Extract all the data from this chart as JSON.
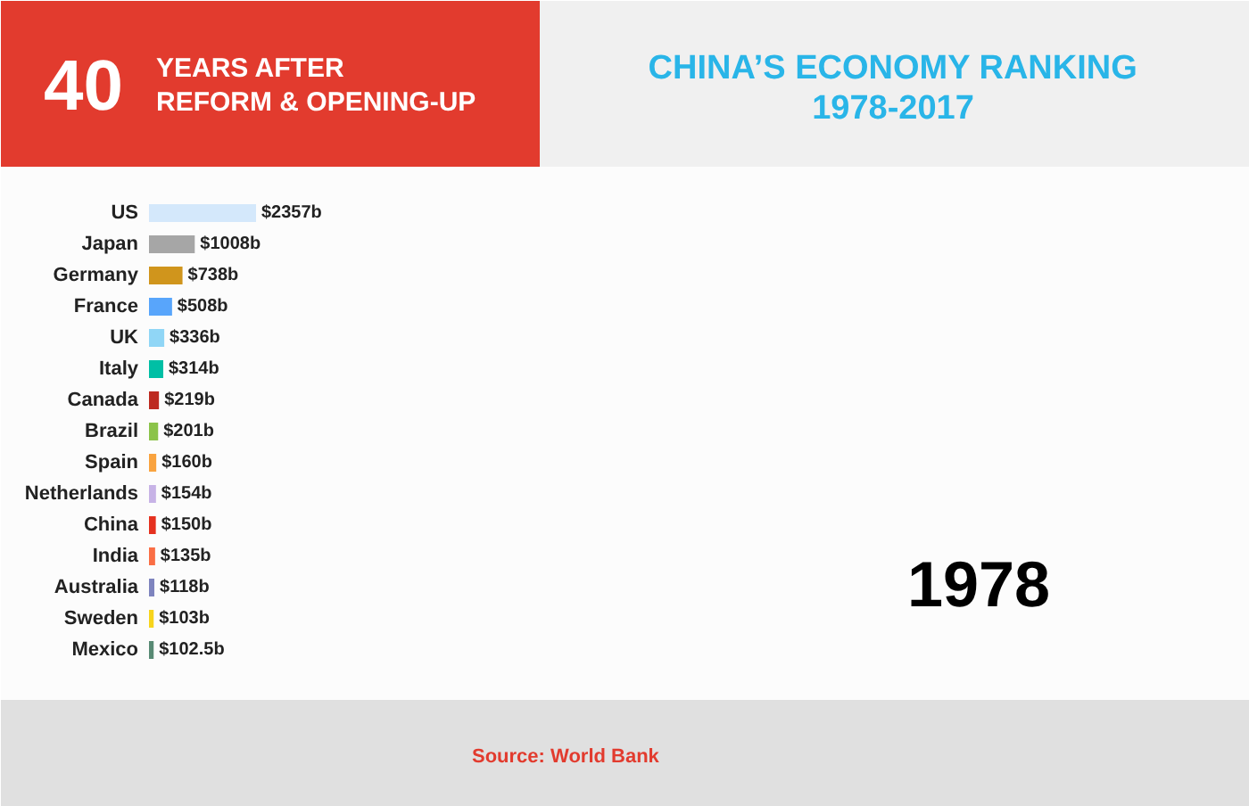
{
  "chart_data": {
    "type": "bar",
    "orientation": "horizontal",
    "title": "CHINA’S ECONOMY RANKING\n1978-2017",
    "categories": [
      "US",
      "Japan",
      "Germany",
      "France",
      "UK",
      "Italy",
      "Canada",
      "Brazil",
      "Spain",
      "Netherlands",
      "China",
      "India",
      "Australia",
      "Sweden",
      "Mexico"
    ],
    "values": [
      2357,
      1008,
      738,
      508,
      336,
      314,
      219,
      201,
      160,
      154,
      150,
      135,
      118,
      103,
      102.5
    ],
    "value_labels": [
      "$2357b",
      "$1008b",
      "$738b",
      "$508b",
      "$336b",
      "$314b",
      "$219b",
      "$201b",
      "$160b",
      "$154b",
      "$150b",
      "$135b",
      "$118b",
      "$103b",
      "$102.5b"
    ],
    "colors": [
      "#d4e8fb",
      "#a6a6a6",
      "#d0951c",
      "#58a5fb",
      "#90d6f6",
      "#00bfa5",
      "#bd2a20",
      "#8bc34a",
      "#f9a33f",
      "#c7b3e6",
      "#e5311f",
      "#fa6e45",
      "#7e84be",
      "#f7d41c",
      "#588a74"
    ],
    "annotations": [
      "40",
      "YEARS AFTER",
      "REFORM & OPENING-UP",
      "1978",
      "Source: World Bank"
    ]
  }
}
